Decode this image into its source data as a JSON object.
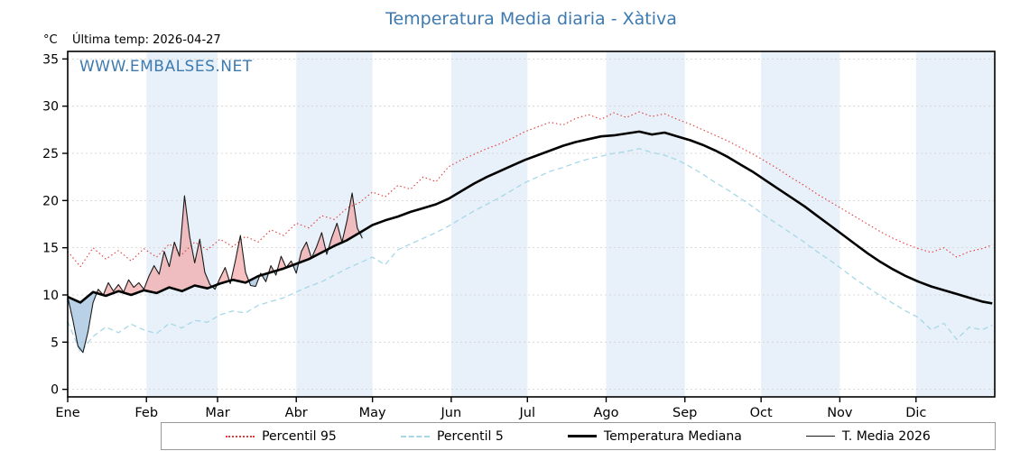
{
  "header": {
    "last_temp": "Última temp: 2026-04-27",
    "watermark": "WWW.EMBALSES.NET"
  },
  "chart_data": {
    "type": "line",
    "title": "Temperatura Media diaria - Xàtiva",
    "ylabel": "°C",
    "ylim": [
      0,
      35
    ],
    "y_ticks": [
      0,
      5,
      10,
      15,
      20,
      25,
      30,
      35
    ],
    "months": [
      "Ene",
      "Feb",
      "Mar",
      "Abr",
      "May",
      "Jun",
      "Jul",
      "Ago",
      "Sep",
      "Oct",
      "Nov",
      "Dic"
    ],
    "month_start_days": [
      0,
      31,
      59,
      90,
      120,
      151,
      181,
      212,
      243,
      273,
      304,
      334
    ],
    "days_total": 365,
    "legend_position": "bottom",
    "grid": true,
    "colors": {
      "title": "#3d7ab0",
      "band": "#e8f1f9",
      "fill_above": "#f2a0a0",
      "fill_below": "#92b8d8",
      "grid": "#cfcfcf"
    },
    "sample_days": [
      0,
      5,
      10,
      15,
      20,
      25,
      30,
      35,
      40,
      45,
      50,
      55,
      60,
      65,
      70,
      75,
      80,
      85,
      90,
      95,
      100,
      105,
      110,
      115,
      120,
      125,
      130,
      135,
      140,
      145,
      150,
      155,
      160,
      165,
      170,
      175,
      180,
      185,
      190,
      195,
      200,
      205,
      210,
      215,
      220,
      225,
      230,
      235,
      240,
      245,
      250,
      255,
      260,
      265,
      270,
      275,
      280,
      285,
      290,
      295,
      300,
      305,
      310,
      315,
      320,
      325,
      330,
      335,
      340,
      345,
      350,
      355,
      360,
      364
    ],
    "series": [
      {
        "name": "Percentil 95",
        "color": "#e03a3a",
        "style": "dotted",
        "values": [
          14.6,
          13.0,
          15.0,
          13.8,
          14.7,
          13.6,
          14.9,
          14.0,
          15.4,
          14.3,
          15.6,
          14.8,
          15.9,
          15.1,
          16.2,
          15.6,
          16.9,
          16.3,
          17.6,
          17.1,
          18.4,
          18.0,
          19.2,
          19.8,
          20.9,
          20.4,
          21.6,
          21.2,
          22.5,
          22.0,
          23.6,
          24.3,
          24.9,
          25.5,
          26.0,
          26.6,
          27.3,
          27.8,
          28.3,
          28.0,
          28.7,
          29.1,
          28.6,
          29.3,
          28.8,
          29.4,
          28.9,
          29.2,
          28.6,
          28.1,
          27.5,
          26.9,
          26.3,
          25.6,
          24.9,
          24.1,
          23.3,
          22.4,
          21.6,
          20.7,
          19.9,
          19.1,
          18.3,
          17.5,
          16.7,
          16.0,
          15.4,
          14.9,
          14.5,
          15.0,
          14.0,
          14.6,
          14.9,
          15.3
        ]
      },
      {
        "name": "Percentil 5",
        "color": "#a6d8e8",
        "style": "dashed",
        "values": [
          7.2,
          3.9,
          5.6,
          6.6,
          6.0,
          6.9,
          6.3,
          5.9,
          7.0,
          6.5,
          7.3,
          7.1,
          7.9,
          8.3,
          8.1,
          8.9,
          9.3,
          9.7,
          10.3,
          10.9,
          11.4,
          12.1,
          12.8,
          13.4,
          14.0,
          13.2,
          14.8,
          15.4,
          16.0,
          16.6,
          17.3,
          18.1,
          18.9,
          19.6,
          20.3,
          21.1,
          21.9,
          22.5,
          23.1,
          23.5,
          24.0,
          24.4,
          24.7,
          25.0,
          25.2,
          25.5,
          25.1,
          24.8,
          24.3,
          23.6,
          22.8,
          21.9,
          21.1,
          20.2,
          19.3,
          18.3,
          17.4,
          16.5,
          15.6,
          14.6,
          13.7,
          12.7,
          11.7,
          10.8,
          9.9,
          9.1,
          8.3,
          7.6,
          6.3,
          7.0,
          5.3,
          6.6,
          6.3,
          6.8
        ]
      },
      {
        "name": "Temperatura Mediana",
        "color": "#000000",
        "style": "solid-thick",
        "values": [
          9.8,
          9.2,
          10.3,
          9.9,
          10.4,
          10.0,
          10.5,
          10.2,
          10.8,
          10.4,
          11.0,
          10.7,
          11.2,
          11.6,
          11.3,
          12.0,
          12.4,
          12.8,
          13.3,
          13.8,
          14.5,
          15.2,
          15.8,
          16.6,
          17.4,
          17.9,
          18.3,
          18.8,
          19.2,
          19.6,
          20.2,
          21.0,
          21.8,
          22.5,
          23.1,
          23.7,
          24.3,
          24.8,
          25.3,
          25.8,
          26.2,
          26.5,
          26.8,
          26.9,
          27.1,
          27.3,
          27.0,
          27.2,
          26.8,
          26.4,
          25.9,
          25.3,
          24.6,
          23.8,
          23.0,
          22.1,
          21.2,
          20.3,
          19.4,
          18.4,
          17.4,
          16.4,
          15.4,
          14.4,
          13.5,
          12.7,
          12.0,
          11.4,
          10.9,
          10.5,
          10.1,
          9.7,
          9.3,
          9.1
        ]
      },
      {
        "name": "T. Media 2026",
        "color": "#1a1a1a",
        "style": "solid-thin",
        "days": [
          0,
          2,
          4,
          6,
          8,
          10,
          12,
          14,
          16,
          18,
          20,
          22,
          24,
          26,
          28,
          30,
          32,
          34,
          36,
          38,
          40,
          42,
          44,
          46,
          48,
          50,
          52,
          54,
          56,
          58,
          60,
          62,
          64,
          66,
          68,
          70,
          72,
          74,
          76,
          78,
          80,
          82,
          84,
          86,
          88,
          90,
          92,
          94,
          96,
          98,
          100,
          102,
          104,
          106,
          108,
          110,
          112,
          114,
          116
        ],
        "values": [
          9.8,
          7.4,
          4.6,
          3.9,
          6.1,
          9.2,
          10.6,
          10.0,
          11.3,
          10.4,
          11.1,
          10.3,
          11.6,
          10.8,
          11.3,
          10.6,
          12.0,
          13.1,
          12.2,
          14.6,
          13.0,
          15.6,
          14.1,
          20.5,
          16.2,
          13.4,
          15.9,
          12.4,
          11.1,
          10.6,
          11.8,
          12.9,
          11.2,
          13.6,
          16.3,
          12.4,
          11.0,
          10.9,
          12.3,
          11.4,
          13.1,
          12.1,
          14.1,
          12.9,
          13.6,
          12.3,
          14.6,
          15.6,
          13.9,
          15.1,
          16.6,
          14.3,
          16.1,
          17.6,
          15.6,
          17.9,
          20.8,
          17.1,
          16.0
        ]
      }
    ]
  }
}
